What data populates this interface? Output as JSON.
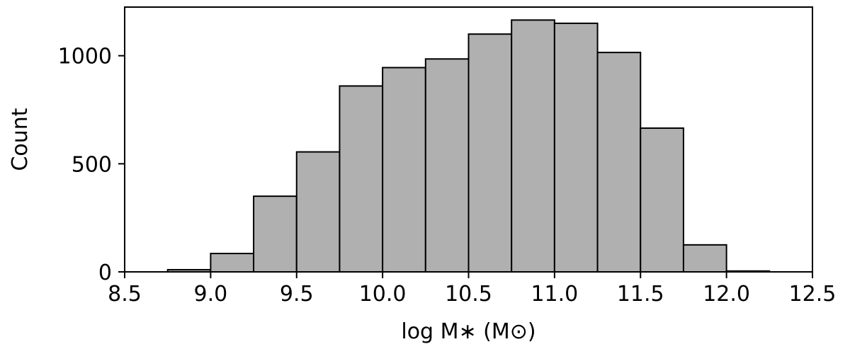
{
  "chart_data": {
    "type": "bar",
    "xlabel": "log M∗ (M⊙)",
    "ylabel": "Count",
    "xlim": [
      8.5,
      12.5
    ],
    "ylim": [
      0,
      1225
    ],
    "xticks": [
      "8.5",
      "9.0",
      "9.5",
      "10.0",
      "10.5",
      "11.0",
      "11.5",
      "12.0",
      "12.5"
    ],
    "yticks": [
      "0",
      "500",
      "1000"
    ],
    "bin_width": 0.25,
    "bins": [
      {
        "x0": 8.75,
        "value": 10
      },
      {
        "x0": 9.0,
        "value": 85
      },
      {
        "x0": 9.25,
        "value": 350
      },
      {
        "x0": 9.5,
        "value": 555
      },
      {
        "x0": 9.75,
        "value": 860
      },
      {
        "x0": 10.0,
        "value": 945
      },
      {
        "x0": 10.25,
        "value": 985
      },
      {
        "x0": 10.5,
        "value": 1100
      },
      {
        "x0": 10.75,
        "value": 1165
      },
      {
        "x0": 11.0,
        "value": 1150
      },
      {
        "x0": 11.25,
        "value": 1015
      },
      {
        "x0": 11.5,
        "value": 665
      },
      {
        "x0": 11.75,
        "value": 125
      },
      {
        "x0": 12.0,
        "value": 4
      }
    ],
    "bar_color": "#b0b0b0",
    "edge_color": "#000000",
    "grid": false
  }
}
